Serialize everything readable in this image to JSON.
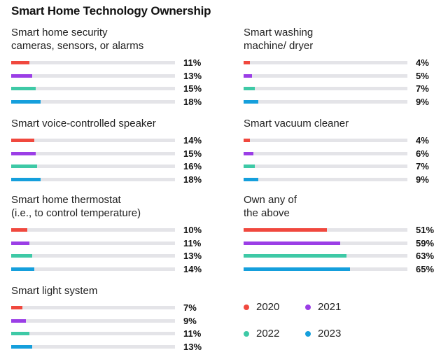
{
  "chart_data": {
    "type": "bar",
    "title": "Smart Home Technology Ownership",
    "series_names": [
      "2020",
      "2021",
      "2022",
      "2023"
    ],
    "colors": [
      "#f0483e",
      "#9b3ee6",
      "#3ec9a6",
      "#159fdc"
    ],
    "xlim": [
      0,
      100
    ],
    "panels": [
      {
        "label": "Smart home security\ncameras, sensors, or alarms",
        "values": [
          11,
          13,
          15,
          18
        ],
        "labels": [
          "11%",
          "13%",
          "15%",
          "18%"
        ]
      },
      {
        "label": "Smart washing\nmachine/ dryer",
        "values": [
          4,
          5,
          7,
          9
        ],
        "labels": [
          "4%",
          "5%",
          "7%",
          "9%"
        ]
      },
      {
        "label": "Smart voice-controlled speaker",
        "values": [
          14,
          15,
          16,
          18
        ],
        "labels": [
          "14%",
          "15%",
          "16%",
          "18%"
        ]
      },
      {
        "label": "Smart vacuum cleaner",
        "values": [
          4,
          6,
          7,
          9
        ],
        "labels": [
          "4%",
          "6%",
          "7%",
          "9%"
        ]
      },
      {
        "label": "Smart home thermostat\n(i.e., to control temperature)",
        "values": [
          10,
          11,
          13,
          14
        ],
        "labels": [
          "10%",
          "11%",
          "13%",
          "14%"
        ]
      },
      {
        "label": "Own any of\nthe above",
        "values": [
          51,
          59,
          63,
          65
        ],
        "labels": [
          "51%",
          "59%",
          "63%",
          "65%"
        ]
      },
      {
        "label": "Smart light system",
        "values": [
          7,
          9,
          11,
          13
        ],
        "labels": [
          "7%",
          "9%",
          "11%",
          "13%"
        ]
      }
    ]
  }
}
